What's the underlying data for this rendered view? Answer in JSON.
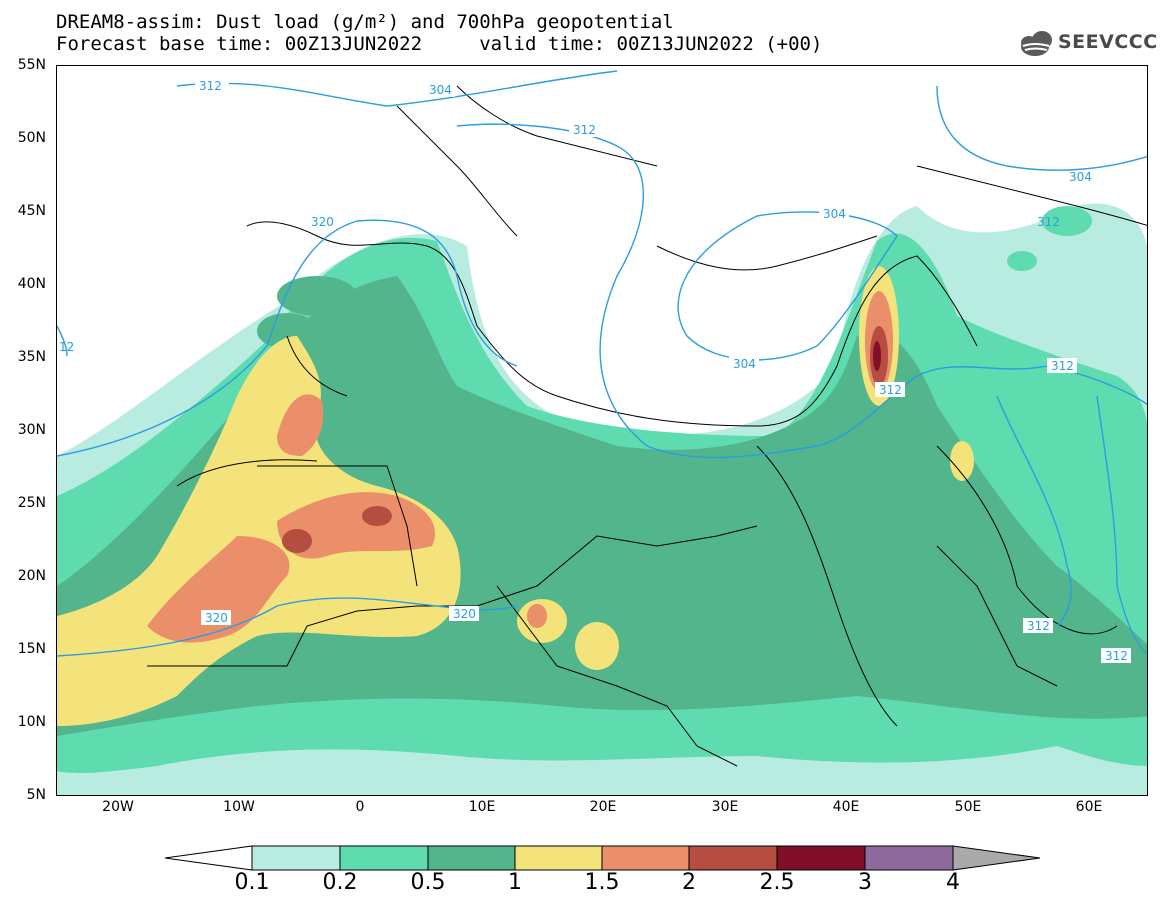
{
  "header": {
    "title_line1": "DREAM8-assim: Dust load (g/m²) and 700hPa geopotential",
    "title_line2": "Forecast base time: 00Z13JUN2022     valid time: 00Z13JUN2022 (+00)",
    "logo_text": "SEEVCCC",
    "logo_icon": "cloud-logo-icon"
  },
  "map": {
    "lat_labels": [
      "55N",
      "50N",
      "45N",
      "40N",
      "35N",
      "30N",
      "25N",
      "20N",
      "15N",
      "10N",
      "5N"
    ],
    "lon_labels": [
      "20W",
      "10W",
      "0",
      "10E",
      "20E",
      "30E",
      "40E",
      "50E",
      "60E"
    ],
    "contour_labels": [
      "312",
      "304",
      "312",
      "304",
      "320",
      "304",
      "312",
      "312",
      "312",
      "312",
      "320",
      "320",
      "312",
      "304",
      "12"
    ]
  },
  "colorbar": {
    "levels": [
      "0.1",
      "0.2",
      "0.5",
      "1",
      "1.5",
      "2",
      "2.5",
      "3",
      "4"
    ],
    "colors": [
      "#ffffff",
      "#b8ece0",
      "#5fdbb0",
      "#52b58c",
      "#f4e37a",
      "#eb8f6a",
      "#b54d41",
      "#820f2a",
      "#8e6a9f",
      "#aaaaaa"
    ]
  }
}
